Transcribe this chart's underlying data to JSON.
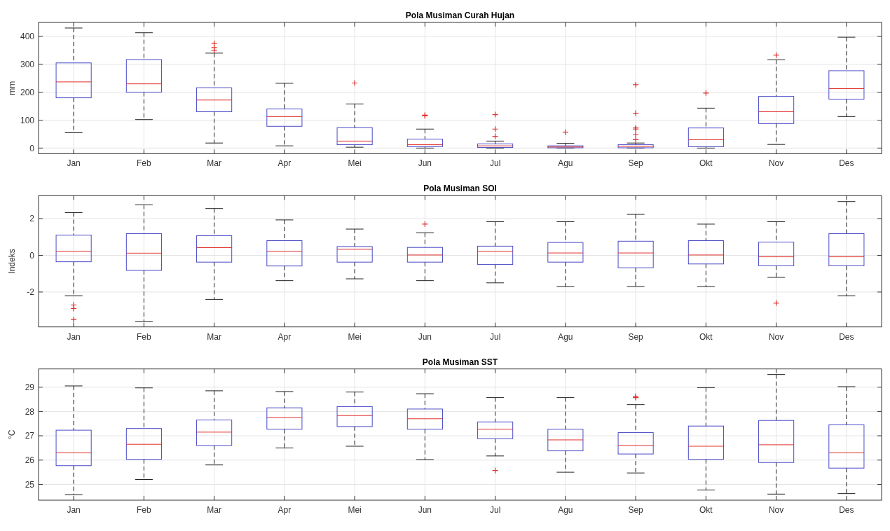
{
  "chart_data": [
    {
      "type": "box",
      "title": "Pola Musiman Curah Hujan",
      "ylabel": "mm",
      "categories": [
        "Jan",
        "Feb",
        "Mar",
        "Apr",
        "Mei",
        "Jun",
        "Jul",
        "Agu",
        "Sep",
        "Okt",
        "Nov",
        "Des"
      ],
      "ylim": [
        -20,
        450
      ],
      "yticks": [
        0,
        100,
        200,
        300,
        400
      ],
      "grid": true,
      "color": "#4b4bc8",
      "boxes": [
        {
          "low": 55,
          "q1": 180,
          "median": 237,
          "q3": 305,
          "high": 430
        },
        {
          "low": 102,
          "q1": 200,
          "median": 230,
          "q3": 317,
          "high": 413
        },
        {
          "low": 18,
          "q1": 130,
          "median": 172,
          "q3": 216,
          "high": 340,
          "outliers": [
            350,
            360,
            375
          ]
        },
        {
          "low": 8,
          "q1": 78,
          "median": 113,
          "q3": 140,
          "high": 232
        },
        {
          "low": 3,
          "q1": 12,
          "median": 25,
          "q3": 73,
          "high": 158,
          "outliers": [
            233
          ]
        },
        {
          "low": 0,
          "q1": 5,
          "median": 12,
          "q3": 32,
          "high": 68,
          "outliers": [
            115,
            118
          ]
        },
        {
          "low": 0,
          "q1": 2,
          "median": 8,
          "q3": 15,
          "high": 25,
          "outliers": [
            42,
            68,
            120
          ]
        },
        {
          "low": 0,
          "q1": 1,
          "median": 4,
          "q3": 8,
          "high": 17,
          "outliers": [
            57
          ]
        },
        {
          "low": 0,
          "q1": 1,
          "median": 6,
          "q3": 12,
          "high": 18,
          "outliers": [
            30,
            48,
            68,
            72,
            125,
            227
          ]
        },
        {
          "low": 0,
          "q1": 5,
          "median": 30,
          "q3": 72,
          "high": 143,
          "outliers": [
            197
          ]
        },
        {
          "low": 13,
          "q1": 88,
          "median": 130,
          "q3": 185,
          "high": 316,
          "outliers": [
            333
          ]
        },
        {
          "low": 113,
          "q1": 175,
          "median": 213,
          "q3": 277,
          "high": 397
        }
      ]
    },
    {
      "type": "box",
      "title": "Pola Musiman SOI",
      "ylabel": "Indeks",
      "categories": [
        "Jan",
        "Feb",
        "Mar",
        "Apr",
        "Mei",
        "Jun",
        "Jul",
        "Agu",
        "Sep",
        "Okt",
        "Nov",
        "Des"
      ],
      "ylim": [
        -3.9,
        3.25
      ],
      "yticks": [
        -2,
        0,
        2
      ],
      "grid": true,
      "color": "#4b4bc8",
      "boxes": [
        {
          "low": -2.2,
          "q1": -0.35,
          "median": 0.22,
          "q3": 1.1,
          "high": 2.33,
          "outliers": [
            -2.7,
            -2.9,
            -3.5
          ]
        },
        {
          "low": -3.6,
          "q1": -0.82,
          "median": 0.12,
          "q3": 1.18,
          "high": 2.75
        },
        {
          "low": -2.4,
          "q1": -0.37,
          "median": 0.42,
          "q3": 1.07,
          "high": 2.55
        },
        {
          "low": -1.38,
          "q1": -0.58,
          "median": 0.22,
          "q3": 0.8,
          "high": 1.93
        },
        {
          "low": -1.28,
          "q1": -0.37,
          "median": 0.33,
          "q3": 0.48,
          "high": 1.43
        },
        {
          "low": -1.38,
          "q1": -0.37,
          "median": 0.02,
          "q3": 0.43,
          "high": 1.23,
          "outliers": [
            1.7
          ]
        },
        {
          "low": -1.5,
          "q1": -0.5,
          "median": 0.22,
          "q3": 0.5,
          "high": 1.83
        },
        {
          "low": -1.7,
          "q1": -0.37,
          "median": 0.13,
          "q3": 0.7,
          "high": 1.83
        },
        {
          "low": -1.7,
          "q1": -0.68,
          "median": 0.13,
          "q3": 0.77,
          "high": 2.23
        },
        {
          "low": -1.7,
          "q1": -0.47,
          "median": 0.02,
          "q3": 0.8,
          "high": 1.7
        },
        {
          "low": -1.2,
          "q1": -0.57,
          "median": -0.08,
          "q3": 0.72,
          "high": 1.83,
          "outliers": [
            -2.6
          ]
        },
        {
          "low": -2.2,
          "q1": -0.57,
          "median": -0.08,
          "q3": 1.18,
          "high": 2.93
        }
      ]
    },
    {
      "type": "box",
      "title": "Pola Musiman SST",
      "ylabel": "°C",
      "categories": [
        "Jan",
        "Feb",
        "Mar",
        "Apr",
        "Mei",
        "Jun",
        "Jul",
        "Agu",
        "Sep",
        "Okt",
        "Nov",
        "Des"
      ],
      "ylim": [
        24.35,
        29.75
      ],
      "yticks": [
        25,
        26,
        27,
        28,
        29
      ],
      "grid": true,
      "color": "#4b4bc8",
      "boxes": [
        {
          "low": 24.58,
          "q1": 25.77,
          "median": 26.3,
          "q3": 27.23,
          "high": 29.05
        },
        {
          "low": 25.2,
          "q1": 26.03,
          "median": 26.65,
          "q3": 27.3,
          "high": 28.97
        },
        {
          "low": 25.8,
          "q1": 26.6,
          "median": 27.15,
          "q3": 27.65,
          "high": 28.85
        },
        {
          "low": 26.5,
          "q1": 27.27,
          "median": 27.75,
          "q3": 28.15,
          "high": 28.82
        },
        {
          "low": 26.57,
          "q1": 27.38,
          "median": 27.83,
          "q3": 28.2,
          "high": 28.8
        },
        {
          "low": 26.02,
          "q1": 27.27,
          "median": 27.7,
          "q3": 28.1,
          "high": 28.73
        },
        {
          "low": 26.17,
          "q1": 26.88,
          "median": 27.27,
          "q3": 27.57,
          "high": 28.57,
          "outliers": [
            25.57
          ]
        },
        {
          "low": 25.5,
          "q1": 26.38,
          "median": 26.83,
          "q3": 27.27,
          "high": 28.57
        },
        {
          "low": 25.47,
          "q1": 26.25,
          "median": 26.6,
          "q3": 27.13,
          "high": 28.28,
          "outliers": [
            28.57,
            28.62
          ]
        },
        {
          "low": 24.77,
          "q1": 26.03,
          "median": 26.57,
          "q3": 27.4,
          "high": 28.98
        },
        {
          "low": 24.6,
          "q1": 25.9,
          "median": 26.63,
          "q3": 27.63,
          "high": 29.52
        },
        {
          "low": 24.62,
          "q1": 25.67,
          "median": 26.3,
          "q3": 27.45,
          "high": 29.02
        }
      ]
    }
  ]
}
